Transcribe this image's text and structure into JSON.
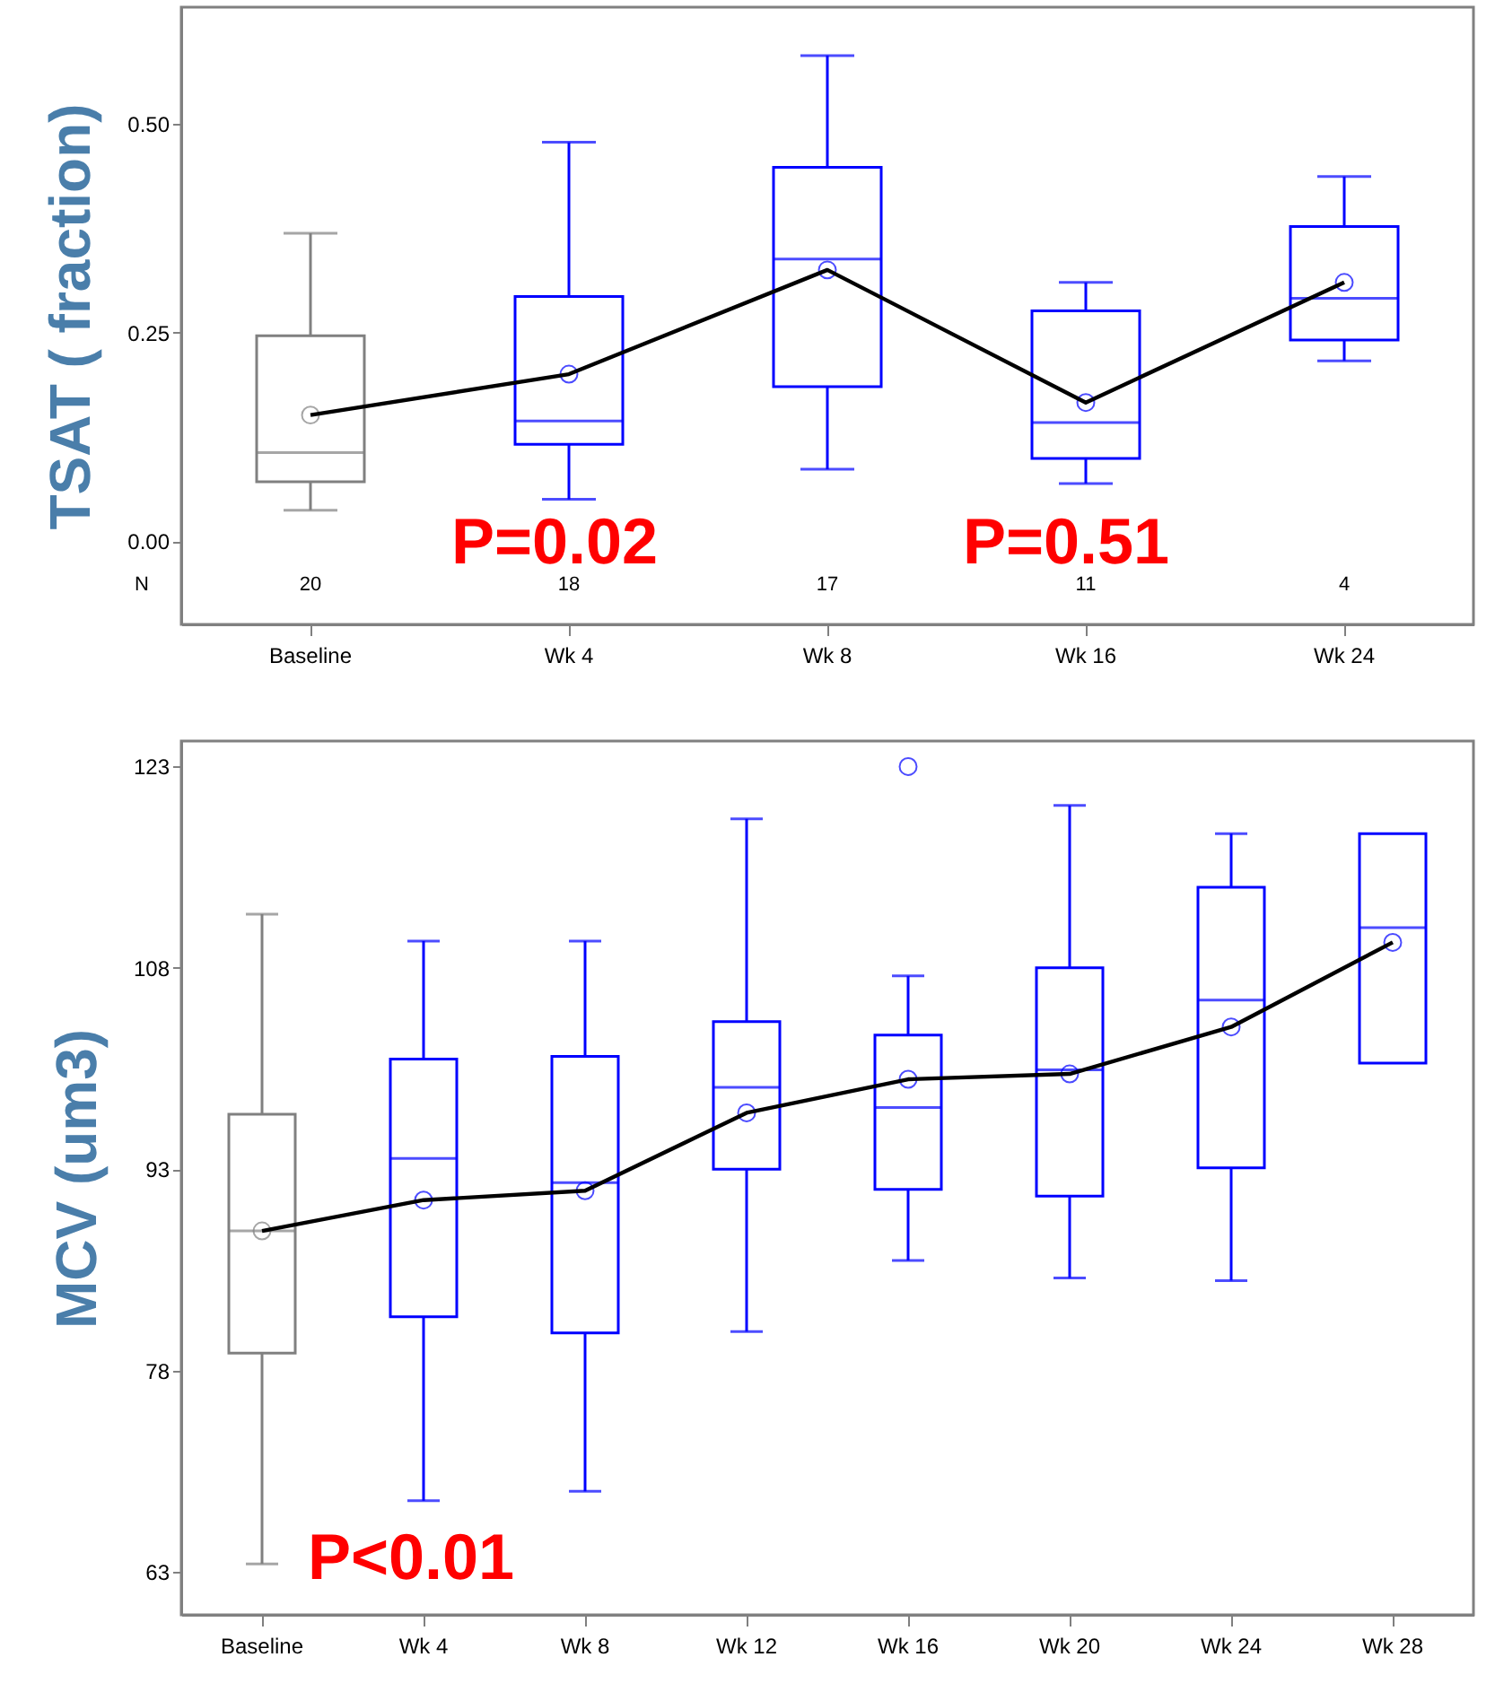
{
  "chart_data": [
    {
      "type": "box",
      "ylabel": "TSAT ( fraction)",
      "categories": [
        "Baseline",
        "Wk 4",
        "Wk 8",
        "Wk 16",
        "Wk 24"
      ],
      "ylim": [
        -0.1,
        0.64
      ],
      "yticks": [
        {
          "value": 0,
          "label": "0.00"
        },
        {
          "value": 0.25,
          "label": "0.25"
        },
        {
          "value": 0.5,
          "label": "0.50"
        }
      ],
      "series": [
        {
          "type": "box",
          "colors": [
            "#808080",
            "#0000ff",
            "#0000ff",
            "#0000ff",
            "#0000ff"
          ],
          "boxes": [
            {
              "low": 0.037,
              "q1": 0.071,
              "median": 0.106,
              "q3": 0.246,
              "high": 0.369,
              "mean": 0.151
            },
            {
              "low": 0.05,
              "q1": 0.116,
              "median": 0.144,
              "q3": 0.293,
              "high": 0.478,
              "mean": 0.2
            },
            {
              "low": 0.086,
              "q1": 0.185,
              "median": 0.338,
              "q3": 0.448,
              "high": 0.582,
              "mean": 0.325
            },
            {
              "low": 0.069,
              "q1": 0.099,
              "median": 0.142,
              "q3": 0.276,
              "high": 0.31,
              "mean": 0.166
            },
            {
              "low": 0.216,
              "q1": 0.241,
              "median": 0.291,
              "q3": 0.377,
              "high": 0.437,
              "mean": 0.31
            }
          ]
        },
        {
          "type": "line",
          "color": "#000000",
          "values": [
            0.151,
            0.2,
            0.325,
            0.166,
            0.31
          ]
        }
      ],
      "annotations": [
        "N",
        "P=0.02",
        "P=0.51",
        "20",
        "18",
        "17",
        "11",
        "4"
      ]
    },
    {
      "type": "box",
      "ylabel": "MCV (um3)",
      "categories": [
        "Baseline",
        "Wk 4",
        "Wk 8",
        "Wk 12",
        "Wk 16",
        "Wk 20",
        "Wk 24",
        "Wk 28"
      ],
      "ylim": [
        59.8,
        124.9
      ],
      "yticks": [
        63,
        78,
        93,
        108,
        123
      ],
      "series": [
        {
          "type": "box",
          "colors": [
            "#808080",
            "#0000ff",
            "#0000ff",
            "#0000ff",
            "#0000ff",
            "#0000ff",
            "#0000ff",
            "#0000ff"
          ],
          "boxes": [
            {
              "low": 63.6,
              "q1": 79.3,
              "median": 88.4,
              "q3": 97.1,
              "high": 112.0,
              "mean": 88.4
            },
            {
              "low": 68.3,
              "q1": 82.0,
              "median": 93.8,
              "q3": 101.2,
              "high": 110.0,
              "mean": 90.7
            },
            {
              "low": 69.0,
              "q1": 80.8,
              "median": 92.0,
              "q3": 101.4,
              "high": 110.0,
              "mean": 91.4
            },
            {
              "low": 80.9,
              "q1": 93.0,
              "median": 99.1,
              "q3": 104.0,
              "high": 119.1,
              "mean": 97.2
            },
            {
              "low": 86.2,
              "q1": 91.5,
              "median": 97.6,
              "q3": 103.0,
              "high": 107.4,
              "mean": 99.7,
              "outliers": [
                123.0
              ]
            },
            {
              "low": 84.9,
              "q1": 91.0,
              "median": 100.4,
              "q3": 108.0,
              "high": 120.1,
              "mean": 100.1
            },
            {
              "low": 84.7,
              "q1": 93.1,
              "median": 105.6,
              "q3": 114.0,
              "high": 118.0,
              "mean": 103.6
            },
            {
              "low": 100.9,
              "q1": 100.9,
              "median": 111.0,
              "q3": 118.0,
              "high": 118.0,
              "mean": 109.9
            }
          ]
        },
        {
          "type": "line",
          "color": "#000000",
          "values": [
            88.4,
            90.7,
            91.4,
            97.2,
            99.7,
            100.1,
            103.6,
            109.9
          ]
        }
      ],
      "annotations": [
        "P<0.01"
      ]
    }
  ]
}
